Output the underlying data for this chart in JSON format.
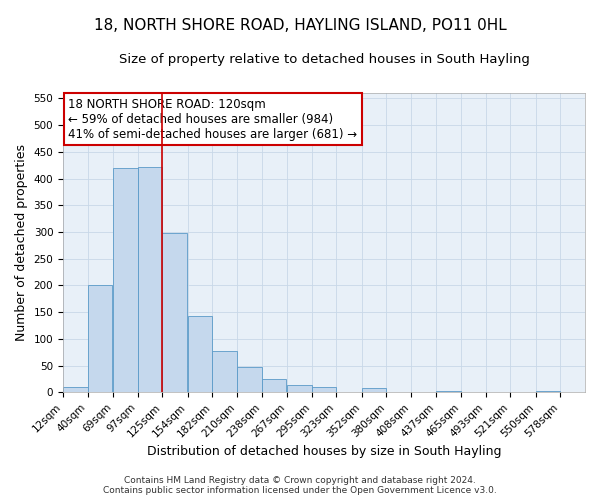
{
  "title": "18, NORTH SHORE ROAD, HAYLING ISLAND, PO11 0HL",
  "subtitle": "Size of property relative to detached houses in South Hayling",
  "xlabel": "Distribution of detached houses by size in South Hayling",
  "ylabel": "Number of detached properties",
  "bar_left_edges": [
    12,
    40,
    69,
    97,
    125,
    154,
    182,
    210,
    238,
    267,
    295,
    323,
    352,
    380,
    408,
    437,
    465,
    493,
    521,
    550
  ],
  "bar_heights": [
    10,
    200,
    420,
    422,
    298,
    143,
    78,
    48,
    25,
    13,
    10,
    0,
    8,
    0,
    0,
    3,
    0,
    0,
    0,
    2
  ],
  "bin_width": 28,
  "tick_labels": [
    "12sqm",
    "40sqm",
    "69sqm",
    "97sqm",
    "125sqm",
    "154sqm",
    "182sqm",
    "210sqm",
    "238sqm",
    "267sqm",
    "295sqm",
    "323sqm",
    "352sqm",
    "380sqm",
    "408sqm",
    "437sqm",
    "465sqm",
    "493sqm",
    "521sqm",
    "550sqm",
    "578sqm"
  ],
  "tick_positions": [
    12,
    40,
    69,
    97,
    125,
    154,
    182,
    210,
    238,
    267,
    295,
    323,
    352,
    380,
    408,
    437,
    465,
    493,
    521,
    550,
    578
  ],
  "bar_color": "#c5d8ed",
  "bar_edge_color": "#5a9ac8",
  "vline_x": 125,
  "vline_color": "#cc0000",
  "ylim": [
    0,
    560
  ],
  "yticks": [
    0,
    50,
    100,
    150,
    200,
    250,
    300,
    350,
    400,
    450,
    500,
    550
  ],
  "annotation_lines": [
    "18 NORTH SHORE ROAD: 120sqm",
    "← 59% of detached houses are smaller (984)",
    "41% of semi-detached houses are larger (681) →"
  ],
  "footer_line1": "Contains HM Land Registry data © Crown copyright and database right 2024.",
  "footer_line2": "Contains public sector information licensed under the Open Government Licence v3.0.",
  "grid_color": "#c8d8e8",
  "background_color": "#e8f0f8",
  "title_fontsize": 11,
  "subtitle_fontsize": 9.5,
  "axis_label_fontsize": 9,
  "tick_fontsize": 7.5,
  "annotation_fontsize": 8.5,
  "footer_fontsize": 6.5
}
